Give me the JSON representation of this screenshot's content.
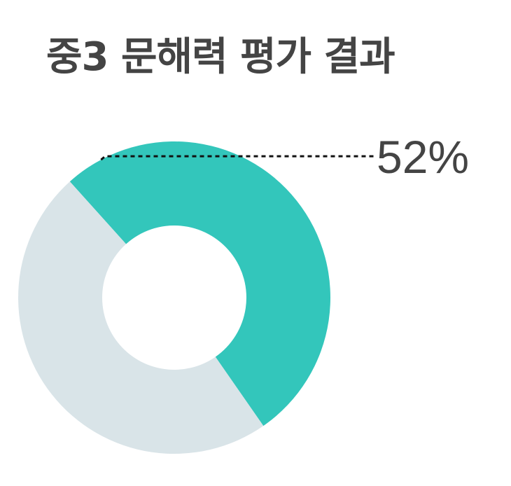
{
  "title": "중3 문해력 평가 결과",
  "chart_data": {
    "type": "pie",
    "donut": true,
    "title": "중3 문해력 평가 결과",
    "slices": [
      {
        "value": 52,
        "color": "#33c6bb",
        "label": "52%"
      },
      {
        "value": 48,
        "color": "#d9e4e8",
        "label": ""
      }
    ],
    "leader_line": "dotted",
    "label_color": "#444444"
  }
}
